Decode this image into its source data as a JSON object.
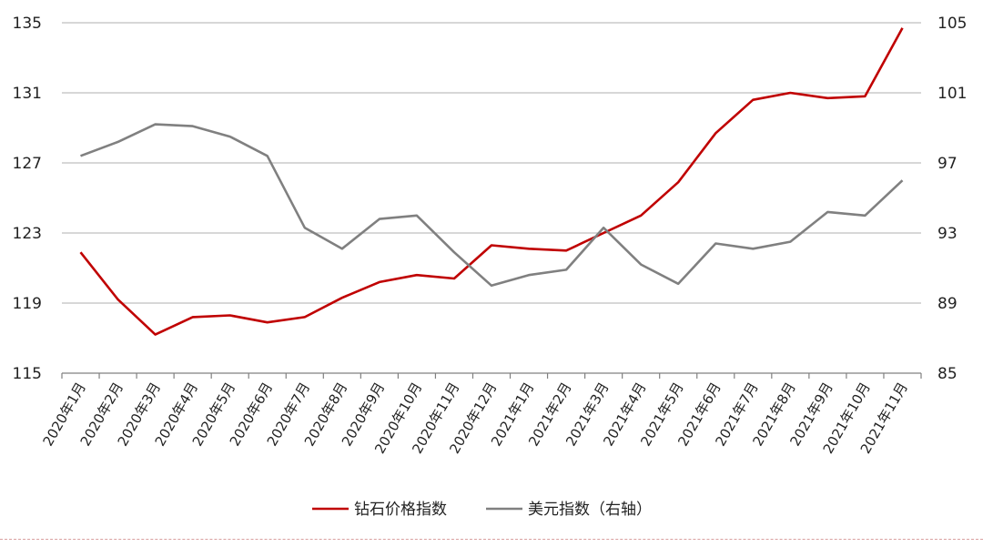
{
  "chart_data": {
    "type": "line",
    "categories": [
      "2020年1月",
      "2020年2月",
      "2020年3月",
      "2020年4月",
      "2020年5月",
      "2020年6月",
      "2020年7月",
      "2020年8月",
      "2020年9月",
      "2020年10月",
      "2020年11月",
      "2020年12月",
      "2021年1月",
      "2021年2月",
      "2021年3月",
      "2021年4月",
      "2021年5月",
      "2021年6月",
      "2021年7月",
      "2021年8月",
      "2021年9月",
      "2021年10月",
      "2021年11月"
    ],
    "series": [
      {
        "name": "钻石价格指数",
        "axis": "left",
        "color": "#c00000",
        "values": [
          121.9,
          119.2,
          117.2,
          118.2,
          118.3,
          117.9,
          118.2,
          119.3,
          120.2,
          120.6,
          120.4,
          122.3,
          122.1,
          122.0,
          123.0,
          124.0,
          125.9,
          128.7,
          130.6,
          131.0,
          130.7,
          130.8,
          134.7
        ]
      },
      {
        "name": "美元指数（右轴）",
        "axis": "right",
        "color": "#808080",
        "values": [
          97.4,
          98.2,
          99.2,
          99.1,
          98.5,
          97.4,
          93.3,
          92.1,
          93.8,
          94.0,
          91.9,
          90.0,
          90.6,
          90.9,
          93.3,
          91.2,
          90.1,
          92.4,
          92.1,
          92.5,
          94.2,
          94.0,
          96.0
        ]
      }
    ],
    "ylim_left": [
      115,
      135
    ],
    "yticks_left": [
      "115",
      "119",
      "123",
      "127",
      "131",
      "135"
    ],
    "ylim_right": [
      85,
      105
    ],
    "yticks_right": [
      "85",
      "89",
      "93",
      "97",
      "101",
      "105"
    ],
    "grid": true,
    "legend": "bottom-center"
  }
}
